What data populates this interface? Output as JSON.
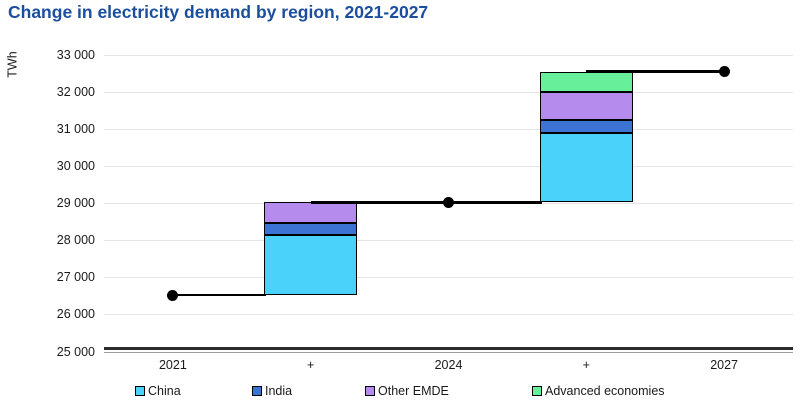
{
  "title": "Change in electricity demand by region, 2021-2027",
  "colors": {
    "title": "#1b4f9e",
    "text": "#1a1a1a",
    "gridline": "#e4e4e4",
    "axis_line": "#2b2b2b",
    "axis_line_secondary": "#9c9c9c",
    "connector_line": "#000000",
    "china": "#4bd2fb",
    "india": "#3b74d2",
    "other_emde": "#b58ced",
    "advanced_economies": "#68ef99"
  },
  "chart_data": {
    "type": "waterfall",
    "title": "Change in electricity demand by region, 2021-2027",
    "unit": "TWh",
    "grid": "horizontal",
    "legend_position": "bottom",
    "y_axis": {
      "label": "TWh",
      "min": 25000,
      "max": 33000,
      "tick_step": 1000,
      "ticks": [
        {
          "value": 33000,
          "label": "33 000"
        },
        {
          "value": 32000,
          "label": "32 000"
        },
        {
          "value": 31000,
          "label": "31 000"
        },
        {
          "value": 30000,
          "label": "30 000"
        },
        {
          "value": 29000,
          "label": "29 000"
        },
        {
          "value": 28000,
          "label": "28 000"
        },
        {
          "value": 27000,
          "label": "27 000"
        },
        {
          "value": 26000,
          "label": "26 000"
        },
        {
          "value": 25000,
          "label": "25 000"
        }
      ]
    },
    "x_categories": [
      "2021",
      "+",
      "2024",
      "+",
      "2027"
    ],
    "totals": [
      {
        "category": "2021",
        "x_index": 0,
        "value": 26530
      },
      {
        "category": "2024",
        "x_index": 2,
        "value": 29030
      },
      {
        "category": "2027",
        "x_index": 4,
        "value": 32550
      }
    ],
    "bars": [
      {
        "x_index": 1,
        "label": "+",
        "period": "2021-2024",
        "segments": [
          {
            "series": "China",
            "color_key": "china",
            "from": 26530,
            "to": 28150,
            "change": 1620
          },
          {
            "series": "India",
            "color_key": "india",
            "from": 28150,
            "to": 28470,
            "change": 320
          },
          {
            "series": "Other EMDE",
            "color_key": "other_emde",
            "from": 28470,
            "to": 29030,
            "change": 560
          }
        ]
      },
      {
        "x_index": 3,
        "label": "+",
        "period": "2024-2027",
        "segments": [
          {
            "series": "China",
            "color_key": "china",
            "from": 29030,
            "to": 30900,
            "change": 1870
          },
          {
            "series": "India",
            "color_key": "india",
            "from": 30900,
            "to": 31250,
            "change": 350
          },
          {
            "series": "Other EMDE",
            "color_key": "other_emde",
            "from": 31250,
            "to": 32000,
            "change": 750
          },
          {
            "series": "Advanced economies",
            "color_key": "advanced_economies",
            "from": 32000,
            "to": 32550,
            "change": 550
          }
        ]
      }
    ],
    "legend": [
      {
        "label": "China",
        "color_key": "china"
      },
      {
        "label": "India",
        "color_key": "india"
      },
      {
        "label": "Other EMDE",
        "color_key": "other_emde"
      },
      {
        "label": "Advanced economies",
        "color_key": "advanced_economies"
      }
    ]
  }
}
